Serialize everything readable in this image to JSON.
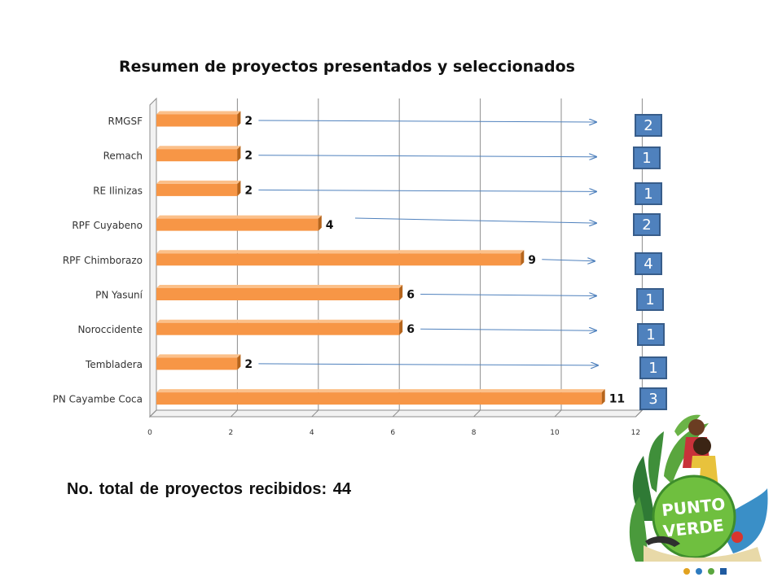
{
  "chart_data": {
    "type": "bar",
    "orientation": "horizontal",
    "title": "Resumen de proyectos presentados y seleccionados",
    "categories": [
      "RMGSF",
      "Remach",
      "RE Ilinizas",
      "RPF Cuyabeno",
      "RPF Chimborazo",
      "PN Yasuní",
      "Noroccidente",
      "Tembladera",
      "PN Cayambe Coca"
    ],
    "values": [
      2,
      2,
      2,
      4,
      9,
      6,
      6,
      2,
      11
    ],
    "selected": [
      2,
      1,
      1,
      2,
      4,
      1,
      1,
      1,
      3
    ],
    "xlim": [
      0,
      12
    ],
    "xticks": [
      0,
      2,
      4,
      6,
      8,
      10,
      12
    ],
    "grid": true,
    "colors": {
      "bar": "#f79646",
      "bar_top": "#fbc08a",
      "bar_side": "#b6651c",
      "box": "#4f81bd",
      "box_border": "#385d8a",
      "arrow": "#4f81bd"
    }
  },
  "summary": {
    "total_text": "No. total de proyectos recibidos: 44"
  },
  "logo": {
    "line1": "PUNTO",
    "line2": "VERDE"
  }
}
